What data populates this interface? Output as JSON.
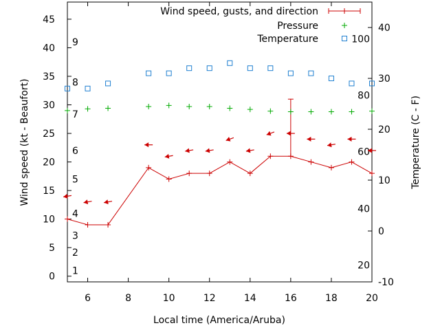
{
  "chart_data": {
    "type": "line",
    "xlabel": "Local time (America/Aruba)",
    "ylabel": "Wind speed (kt - Beaufort)",
    "y2label": "Temperature (C - F)",
    "xlim": [
      5,
      20
    ],
    "ylim": [
      -1,
      48
    ],
    "y2lim": [
      -10,
      45
    ],
    "x_ticks": [
      6,
      8,
      10,
      12,
      14,
      16,
      18,
      20
    ],
    "y_ticks": [
      0,
      5,
      10,
      15,
      20,
      25,
      30,
      35,
      40,
      45
    ],
    "y2_ticks": [
      -10,
      0,
      10,
      20,
      30,
      40
    ],
    "beaufort_labels": [
      {
        "label": "1",
        "kt": 1
      },
      {
        "label": "2",
        "kt": 4.2
      },
      {
        "label": "3",
        "kt": 7.1
      },
      {
        "label": "4",
        "kt": 11
      },
      {
        "label": "5",
        "kt": 17
      },
      {
        "label": "6",
        "kt": 22
      },
      {
        "label": "7",
        "kt": 28.4
      },
      {
        "label": "8",
        "kt": 34
      },
      {
        "label": "9",
        "kt": 41
      }
    ],
    "fahrenheit_labels": [
      {
        "label": "20",
        "c": -6.7
      },
      {
        "label": "40",
        "c": 4.4
      },
      {
        "label": "60",
        "c": 15.6
      },
      {
        "label": "80",
        "c": 26.7
      },
      {
        "label": "100",
        "c": 37.8
      }
    ],
    "legend_position": "top-right",
    "series": [
      {
        "name": "Wind speed, gusts, and direction",
        "color": "#cc0000",
        "style": "line-plus",
        "x": [
          5,
          6,
          7,
          9,
          10,
          11,
          12,
          13,
          14,
          15,
          16,
          17,
          18,
          19,
          20
        ],
        "values": [
          10,
          9,
          9,
          19,
          17,
          18,
          18,
          20,
          18,
          21,
          21,
          20,
          19,
          20,
          18
        ],
        "gusts": [
          null,
          null,
          null,
          null,
          null,
          null,
          null,
          null,
          null,
          null,
          31,
          null,
          null,
          null,
          null
        ],
        "direction_deg": [
          80,
          80,
          80,
          90,
          80,
          80,
          80,
          70,
          80,
          70,
          90,
          90,
          80,
          90,
          90
        ]
      },
      {
        "name": "Pressure",
        "color": "#00aa00",
        "style": "plus",
        "x": [
          5,
          6,
          7,
          9,
          10,
          11,
          12,
          13,
          14,
          15,
          16,
          17,
          18,
          19,
          20
        ],
        "values": [
          29,
          29.3,
          29.4,
          29.7,
          29.9,
          29.7,
          29.7,
          29.4,
          29.2,
          28.9,
          28.8,
          28.8,
          28.8,
          28.8,
          28.9
        ]
      },
      {
        "name": "Temperature",
        "color": "#1e7fd0",
        "style": "square",
        "axis": "y2",
        "x": [
          5,
          6,
          7,
          9,
          10,
          11,
          12,
          13,
          14,
          15,
          16,
          17,
          18,
          19,
          20
        ],
        "values": [
          28,
          28,
          29,
          31,
          31,
          32,
          32,
          33,
          32,
          32,
          31,
          31,
          30,
          29,
          29
        ]
      }
    ]
  }
}
